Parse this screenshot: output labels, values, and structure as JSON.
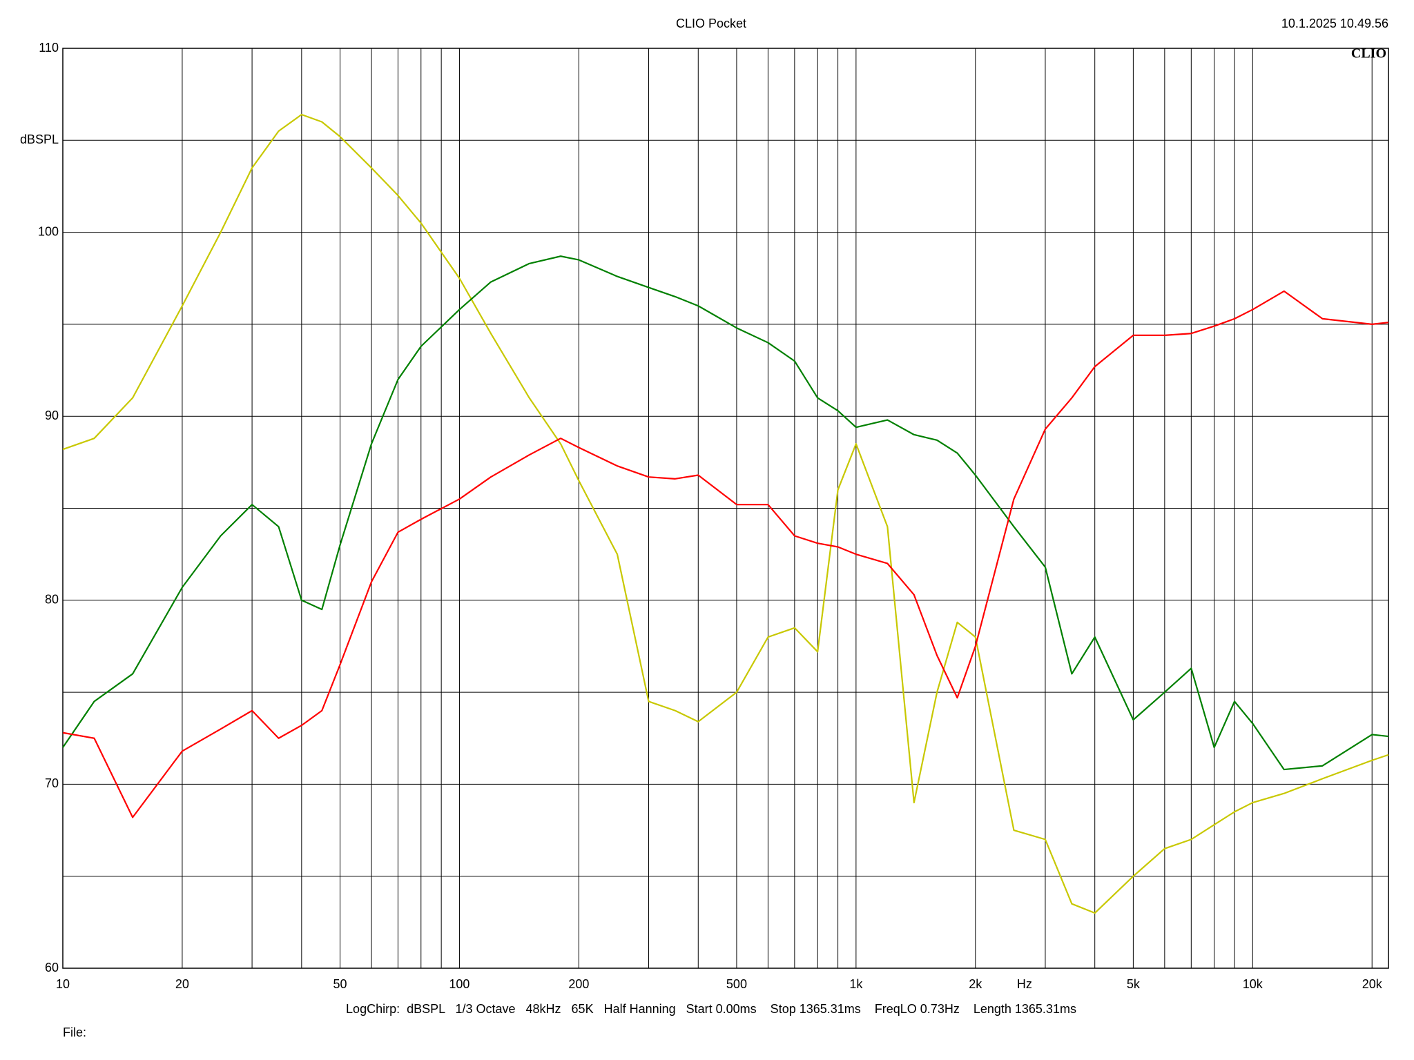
{
  "chart_data": {
    "type": "line",
    "title": "CLIO Pocket",
    "timestamp": "10.1.2025 10.49.56",
    "logo": "CLIO",
    "x_label": "Hz",
    "y_label": "dBSPL",
    "footer": "LogChirp:  dBSPL   1/3 Octave   48kHz   65K   Half Hanning   Start 0.00ms    Stop 1365.31ms    FreqLO 0.73Hz    Length 1365.31ms",
    "file_label": "File:",
    "x_log": true,
    "grid": true,
    "xlim": [
      10,
      22000
    ],
    "ylim": [
      60,
      110
    ],
    "xticks": [
      10,
      20,
      50,
      100,
      200,
      500,
      {
        "value": 1000,
        "label": "1k"
      },
      {
        "value": 2000,
        "label": "2k"
      },
      {
        "value": 5000,
        "label": "5k"
      },
      {
        "value": 10000,
        "label": "10k"
      },
      {
        "value": 20000,
        "label": "20k"
      }
    ],
    "xgrid": [
      10,
      20,
      30,
      40,
      50,
      60,
      70,
      80,
      90,
      100,
      200,
      300,
      400,
      500,
      600,
      700,
      800,
      900,
      1000,
      2000,
      3000,
      4000,
      5000,
      6000,
      7000,
      8000,
      9000,
      10000,
      20000
    ],
    "x_label_at": 2660,
    "yticks": [
      60,
      70,
      80,
      90,
      100,
      110
    ],
    "ygrid": [
      65,
      75,
      85,
      95,
      105
    ],
    "y_label_at": 105,
    "x": [
      10,
      12,
      15,
      20,
      25,
      30,
      35,
      40,
      45,
      50,
      60,
      70,
      80,
      100,
      120,
      150,
      180,
      200,
      250,
      300,
      350,
      400,
      500,
      600,
      700,
      800,
      900,
      1000,
      1200,
      1400,
      1600,
      1800,
      2000,
      2500,
      3000,
      3500,
      4000,
      5000,
      6000,
      7000,
      8000,
      9000,
      10000,
      12000,
      15000,
      20000,
      22000
    ],
    "series": [
      {
        "color": "#c8c800",
        "values": [
          88.2,
          88.8,
          91,
          96,
          100,
          103.5,
          105.5,
          106.4,
          106,
          105.2,
          103.5,
          102,
          100.5,
          97.5,
          94.5,
          91,
          88.5,
          86.5,
          82.5,
          74.5,
          74,
          73.4,
          75,
          78,
          78.5,
          77.2,
          86,
          88.5,
          84,
          69,
          75,
          78.8,
          78,
          67.5,
          67,
          63.5,
          63,
          65,
          66.5,
          67,
          67.8,
          68.5,
          69,
          69.5,
          70.3,
          71.3,
          71.6
        ]
      },
      {
        "color": "#008000",
        "values": [
          72,
          74.5,
          76,
          80.7,
          83.5,
          85.2,
          84,
          80,
          79.5,
          83,
          88.5,
          92,
          93.8,
          95.8,
          97.3,
          98.3,
          98.7,
          98.5,
          97.6,
          97,
          96.5,
          96,
          94.8,
          94,
          93,
          91,
          90.3,
          89.4,
          89.8,
          89,
          88.7,
          88,
          86.8,
          84,
          81.8,
          76,
          78,
          73.5,
          75,
          76.3,
          72,
          74.5,
          73.3,
          70.8,
          71,
          72.7,
          72.6
        ]
      },
      {
        "color": "#ff0000",
        "values": [
          72.8,
          72.5,
          68.2,
          71.8,
          73,
          74,
          72.5,
          73.2,
          74,
          76.5,
          81,
          83.7,
          84.4,
          85.5,
          86.7,
          87.9,
          88.8,
          88.3,
          87.3,
          86.7,
          86.6,
          86.8,
          85.2,
          85.2,
          83.5,
          83.1,
          82.9,
          82.5,
          82,
          80.3,
          77,
          74.7,
          77.5,
          85.5,
          89.3,
          91,
          92.7,
          94.4,
          94.4,
          94.5,
          94.9,
          95.3,
          95.8,
          96.8,
          95.3,
          95,
          95.1
        ]
      }
    ]
  }
}
